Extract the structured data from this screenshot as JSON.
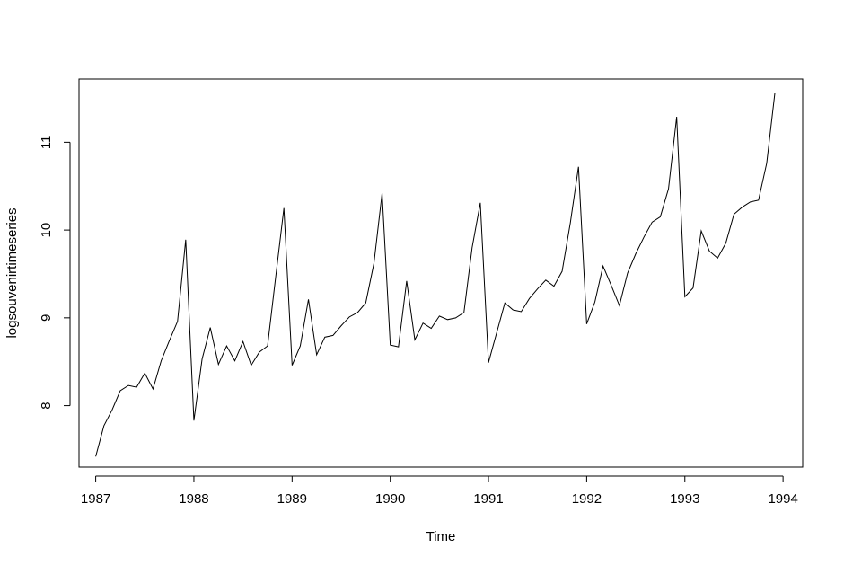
{
  "chart_data": {
    "type": "line",
    "title": "",
    "xlabel": "Time",
    "ylabel": "logsouvenirtimeseries",
    "xlim": [
      1986.83,
      1994.2
    ],
    "ylim": [
      7.3,
      11.72
    ],
    "x_ticks": [
      1987,
      1988,
      1989,
      1990,
      1991,
      1992,
      1993,
      1994
    ],
    "x_tick_labels": [
      "1987",
      "1988",
      "1989",
      "1990",
      "1991",
      "1992",
      "1993",
      "1994"
    ],
    "y_ticks": [
      8,
      9,
      10,
      11
    ],
    "y_tick_labels": [
      "8",
      "9",
      "10",
      "11"
    ],
    "grid": false,
    "legend": "none",
    "series_color": "#000000",
    "x_start": 1987,
    "frequency": 12,
    "series": [
      {
        "values": [
          7.42,
          7.77,
          7.95,
          8.17,
          8.23,
          8.21,
          8.37,
          8.19,
          8.51,
          8.74,
          8.96,
          9.89,
          7.83,
          8.53,
          8.89,
          8.47,
          8.68,
          8.51,
          8.73,
          8.46,
          8.61,
          8.68,
          9.47,
          10.25,
          8.46,
          8.68,
          9.21,
          8.58,
          8.78,
          8.8,
          8.91,
          9.01,
          9.06,
          9.17,
          9.62,
          10.42,
          8.69,
          8.67,
          9.42,
          8.75,
          8.94,
          8.88,
          9.02,
          8.98,
          9.0,
          9.06,
          9.8,
          10.31,
          8.49,
          8.83,
          9.17,
          9.09,
          9.07,
          9.22,
          9.33,
          9.43,
          9.36,
          9.53,
          10.08,
          10.72,
          8.93,
          9.18,
          9.59,
          9.37,
          9.14,
          9.51,
          9.73,
          9.92,
          10.09,
          10.15,
          10.47,
          11.29,
          9.24,
          9.34,
          9.99,
          9.76,
          9.68,
          9.85,
          10.18,
          10.26,
          10.32,
          10.34,
          10.76,
          11.56
        ]
      }
    ]
  }
}
